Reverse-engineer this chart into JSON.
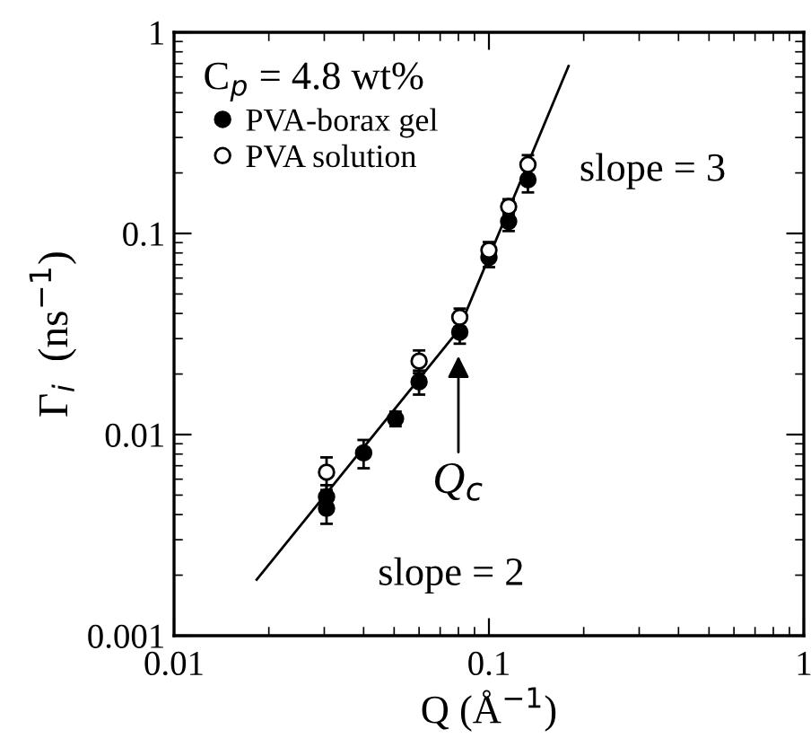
{
  "chart_data": {
    "type": "scatter",
    "xlabel": "Q (Å$^{−1}$)",
    "ylabel": "Γ$_{i}$  (ns$^{−1}$)",
    "legend_title": "C$_{p}$ = 4.8 wt%",
    "log": "xy",
    "legend": "top left",
    "grid": false,
    "xlim": [
      0.01,
      1
    ],
    "ylim": [
      0.001,
      1
    ],
    "xticks": [
      0.01,
      0.1,
      1
    ],
    "yticks": [
      0.001,
      0.01,
      0.1,
      1
    ],
    "series": [
      {
        "name": "PVA-borax gel",
        "marker": "circle",
        "color": "#000000",
        "x": [
          0.0305,
          0.0305,
          0.04,
          0.0505,
          0.06,
          0.0808,
          0.1,
          0.1155,
          0.133
        ],
        "values": [
          0.0043,
          0.0049,
          0.0081,
          0.012,
          0.0183,
          0.0323,
          0.076,
          0.1148,
          0.185
        ],
        "errors": [
          0.0007,
          0.0007,
          0.0013,
          0.001,
          0.0025,
          0.004,
          0.008,
          0.012,
          0.025
        ]
      },
      {
        "name": "PVA solution",
        "marker": "circle",
        "color": "#ffffff",
        "x": [
          0.0305,
          0.06,
          0.0808,
          0.1,
          0.1155,
          0.133
        ],
        "values": [
          0.0065,
          0.0232,
          0.0383,
          0.0826,
          0.136,
          0.22
        ],
        "errors": [
          0.0012,
          0.003,
          0.004,
          0.008,
          0.012,
          0.025
        ]
      },
      {
        "type": "line",
        "color": "#000000",
        "line_style": "solid",
        "x": [
          0.0183,
          0.08,
          0.179
        ],
        "values": [
          0.0019,
          0.033,
          0.68
        ]
      }
    ],
    "annotations": [
      "slope = 3",
      "slope = 2",
      {
        "text": "Q$_{c}$",
        "x": 0.08,
        "y": 0.026
      }
    ]
  }
}
